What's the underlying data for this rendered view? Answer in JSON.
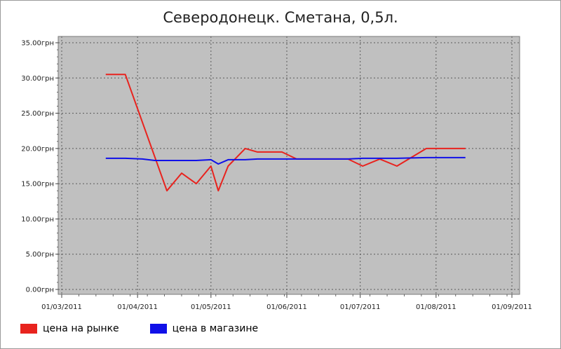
{
  "chart_data": {
    "type": "line",
    "title": "Северодонецк. Сметана, 0,5л.",
    "xlabel": "",
    "ylabel": "",
    "x_ticks": [
      "01/03/2011",
      "01/04/2011",
      "01/05/2011",
      "01/06/2011",
      "01/07/2011",
      "01/08/2011",
      "01/09/2011"
    ],
    "x_range": [
      "2011-03-01",
      "2011-09-01"
    ],
    "y_ticks": [
      "0.00грн",
      "5.00грн",
      "10.00грн",
      "15.00грн",
      "20.00грн",
      "25.00грн",
      "30.00грн",
      "35.00грн"
    ],
    "ylim": [
      0,
      35
    ],
    "grid": true,
    "legend_position": "bottom-left",
    "series": [
      {
        "name": "цена на рынке",
        "color": "#e8231e",
        "points": [
          [
            "2011-03-19",
            30.5
          ],
          [
            "2011-03-27",
            30.5
          ],
          [
            "2011-04-13",
            14.0
          ],
          [
            "2011-04-19",
            16.5
          ],
          [
            "2011-04-25",
            15.0
          ],
          [
            "2011-05-01",
            17.5
          ],
          [
            "2011-05-04",
            14.0
          ],
          [
            "2011-05-08",
            17.5
          ],
          [
            "2011-05-15",
            20.0
          ],
          [
            "2011-05-20",
            19.5
          ],
          [
            "2011-05-30",
            19.5
          ],
          [
            "2011-06-05",
            18.5
          ],
          [
            "2011-06-26",
            18.5
          ],
          [
            "2011-07-02",
            17.5
          ],
          [
            "2011-07-09",
            18.5
          ],
          [
            "2011-07-16",
            17.5
          ],
          [
            "2011-07-28",
            20.0
          ],
          [
            "2011-08-13",
            20.0
          ]
        ]
      },
      {
        "name": "цена в магазине",
        "color": "#1010e8",
        "points": [
          [
            "2011-03-19",
            18.6
          ],
          [
            "2011-03-27",
            18.6
          ],
          [
            "2011-04-03",
            18.5
          ],
          [
            "2011-04-08",
            18.3
          ],
          [
            "2011-04-25",
            18.3
          ],
          [
            "2011-05-01",
            18.4
          ],
          [
            "2011-05-04",
            17.8
          ],
          [
            "2011-05-08",
            18.4
          ],
          [
            "2011-05-15",
            18.4
          ],
          [
            "2011-05-20",
            18.5
          ],
          [
            "2011-05-30",
            18.5
          ],
          [
            "2011-06-05",
            18.5
          ],
          [
            "2011-06-26",
            18.5
          ],
          [
            "2011-07-02",
            18.6
          ],
          [
            "2011-07-09",
            18.6
          ],
          [
            "2011-07-16",
            18.6
          ],
          [
            "2011-07-28",
            18.7
          ],
          [
            "2011-08-13",
            18.7
          ]
        ]
      }
    ]
  },
  "colors": {
    "plot_background": "#c0c0c0",
    "grid": "#5a5a5a"
  }
}
